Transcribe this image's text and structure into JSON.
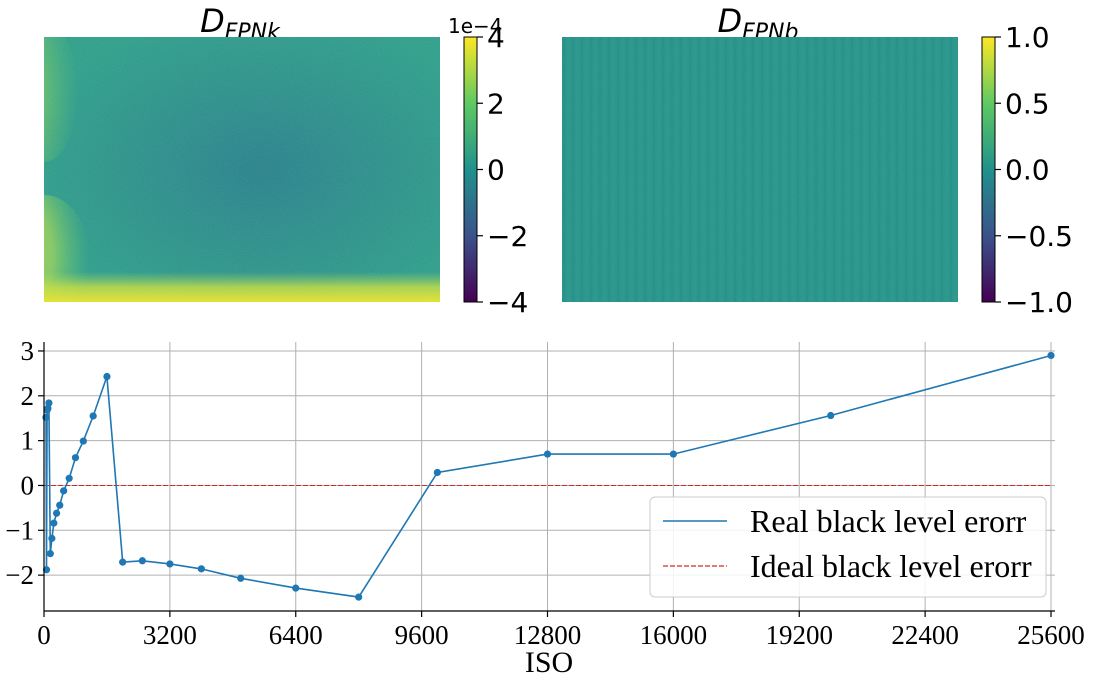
{
  "heatmap_left": {
    "title_main": "D",
    "title_sub": "FPNk",
    "colorbar": {
      "offset_label": "1e−4",
      "ticks": [
        "4",
        "2",
        "0",
        "−2",
        "−4"
      ]
    }
  },
  "heatmap_right": {
    "title_main": "D",
    "title_sub": "FPNb",
    "colorbar": {
      "ticks": [
        "1.0",
        "0.5",
        "0.0",
        "−0.5",
        "−1.0"
      ]
    }
  },
  "colors": {
    "series": "#1f77b4",
    "ideal": "#d62728",
    "grid": "#b0b0b0",
    "viridis": [
      "#440154",
      "#3b528b",
      "#21918c",
      "#5ec962",
      "#fde725"
    ]
  },
  "chart_data": [
    {
      "type": "heatmap",
      "title": "D_FPNk",
      "colorbar_range": [
        -0.0004,
        0.0004
      ],
      "pattern": "mostly near 0 (teal) with bright yellow band along bottom edge and yellow patches on left edge"
    },
    {
      "type": "heatmap",
      "title": "D_FPNb",
      "colorbar_range": [
        -1.0,
        1.0
      ],
      "pattern": "uniform near 0 with faint vertical striping"
    },
    {
      "type": "line",
      "xlabel": "ISO",
      "ylabel": "",
      "xlim": [
        0,
        25600
      ],
      "ylim": [
        -2.8,
        3.2
      ],
      "xticks": [
        0,
        3200,
        6400,
        9600,
        12800,
        16000,
        19200,
        22400,
        25600
      ],
      "yticks": [
        -2,
        -1,
        0,
        1,
        2,
        3
      ],
      "xtick_labels": [
        "0",
        "3200",
        "6400",
        "9600",
        "12800",
        "16000",
        "19200",
        "22400",
        "25600"
      ],
      "ytick_labels": [
        "−2",
        "−1",
        "0",
        "1",
        "2",
        "3"
      ],
      "grid": true,
      "legend_position": "lower-right",
      "series": [
        {
          "name": "Real black level erorr",
          "style": "solid-with-markers",
          "x": [
            50,
            64,
            80,
            100,
            125,
            160,
            200,
            250,
            320,
            400,
            500,
            640,
            800,
            1000,
            1250,
            1600,
            2000,
            2500,
            3200,
            4000,
            5000,
            6400,
            8000,
            10000,
            12800,
            16000,
            20000,
            25600
          ],
          "y": [
            1.52,
            -1.88,
            1.68,
            1.72,
            1.84,
            -1.52,
            -1.18,
            -0.84,
            -0.62,
            -0.44,
            -0.12,
            0.16,
            0.62,
            0.99,
            1.55,
            2.43,
            -1.71,
            -1.68,
            -1.75,
            -1.86,
            -2.07,
            -2.29,
            -2.49,
            0.29,
            0.7,
            0.7,
            1.56,
            2.9
          ]
        },
        {
          "name": "Ideal black level erorr",
          "style": "dashed",
          "x": [
            0,
            25600
          ],
          "y": [
            0,
            0
          ]
        }
      ]
    }
  ]
}
